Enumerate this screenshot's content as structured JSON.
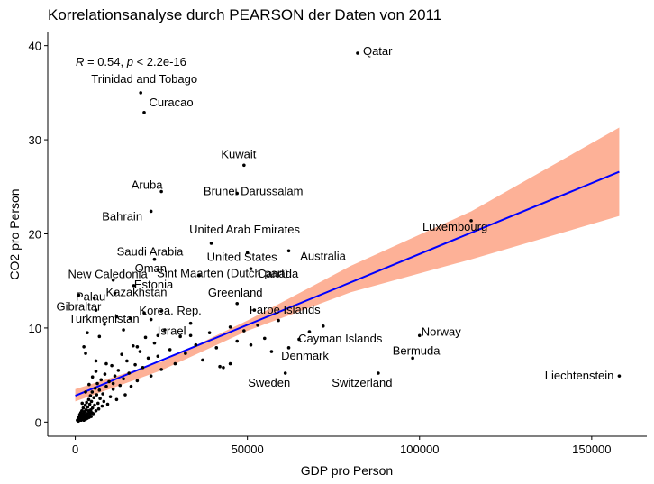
{
  "chart_data": {
    "type": "scatter",
    "title": "Korrelationsanalyse durch PEARSON der Daten von 2011",
    "xlabel": "GDP pro Person",
    "ylabel": "CO2 pro Person",
    "xlim": [
      -8000,
      166000
    ],
    "ylim": [
      -1.5,
      41.5
    ],
    "x_ticks": [
      0,
      50000,
      100000,
      150000
    ],
    "x_tick_labels": [
      "0",
      "50000",
      "100000",
      "150000"
    ],
    "y_ticks": [
      0,
      10,
      20,
      30,
      40
    ],
    "y_tick_labels": [
      "0",
      "10",
      "20",
      "30",
      "40"
    ],
    "grid": false,
    "annotation": {
      "r_label": "R",
      "r_text": " = 0.54, ",
      "p_label": "p",
      "p_text": " < 2.2e-16"
    },
    "regression": {
      "x_range": [
        0,
        158000
      ],
      "line": [
        [
          0,
          2.8
        ],
        [
          158000,
          26.6
        ]
      ],
      "ci_band": [
        [
          0,
          2.2,
          3.5
        ],
        [
          25000,
          5.5,
          6.4
        ],
        [
          50000,
          9.7,
          10.8
        ],
        [
          80000,
          13.8,
          16.6
        ],
        [
          115000,
          17.3,
          22.4
        ],
        [
          158000,
          21.9,
          31.3
        ]
      ],
      "line_color": "#0000ff",
      "band_color": "#fdb197"
    },
    "labeled_points": [
      {
        "name": "Qatar",
        "x": 82000,
        "y": 39.2
      },
      {
        "name": "Trinidad and Tobago",
        "x": 19000,
        "y": 35.0
      },
      {
        "name": "Curacao",
        "x": 20000,
        "y": 32.9
      },
      {
        "name": "Kuwait",
        "x": 49000,
        "y": 27.3
      },
      {
        "name": "Aruba",
        "x": 25000,
        "y": 24.5
      },
      {
        "name": "Brunei Darussalam",
        "x": 47000,
        "y": 24.3
      },
      {
        "name": "Luxembourg",
        "x": 115000,
        "y": 21.4
      },
      {
        "name": "Bahrain",
        "x": 22000,
        "y": 22.4
      },
      {
        "name": "United Arab Emirates",
        "x": 39500,
        "y": 19.0
      },
      {
        "name": "United States",
        "x": 50000,
        "y": 18.0
      },
      {
        "name": "Saudi Arabia",
        "x": 23000,
        "y": 17.3
      },
      {
        "name": "Australia",
        "x": 62000,
        "y": 18.2
      },
      {
        "name": "Oman",
        "x": 24000,
        "y": 16.2
      },
      {
        "name": "Sint Maarten (Dutch part)",
        "x": 36000,
        "y": 15.6
      },
      {
        "name": "Canada",
        "x": 51000,
        "y": 16.3
      },
      {
        "name": "New Caledonia",
        "x": 11000,
        "y": 15.1
      },
      {
        "name": "Estonia",
        "x": 17000,
        "y": 14.5
      },
      {
        "name": "Greenland",
        "x": 47000,
        "y": 12.6
      },
      {
        "name": "Kazakhstan",
        "x": 11500,
        "y": 13.7
      },
      {
        "name": "Palau",
        "x": 5500,
        "y": 13.2
      },
      {
        "name": "Faroe Islands",
        "x": 52000,
        "y": 11.9
      },
      {
        "name": "Korea. Rep.",
        "x": 25000,
        "y": 11.8
      },
      {
        "name": "Gibraltar",
        "x": 1000,
        "y": 13.5
      },
      {
        "name": "Turkmenistan",
        "x": 6000,
        "y": 11.9
      },
      {
        "name": "Israel",
        "x": 33500,
        "y": 9.2
      },
      {
        "name": "Norway",
        "x": 100000,
        "y": 9.2
      },
      {
        "name": "Cayman Islands",
        "x": 72000,
        "y": 10.2
      },
      {
        "name": "Bermuda",
        "x": 98000,
        "y": 6.8
      },
      {
        "name": "Denmark",
        "x": 62000,
        "y": 7.9
      },
      {
        "name": "Liechtenstein",
        "x": 158000,
        "y": 4.9
      },
      {
        "name": "Sweden",
        "x": 61000,
        "y": 5.2
      },
      {
        "name": "Switzerland",
        "x": 88000,
        "y": 5.2
      }
    ],
    "points": [
      [
        600,
        0.2
      ],
      [
        800,
        0.3
      ],
      [
        900,
        0.1
      ],
      [
        1000,
        0.5
      ],
      [
        1100,
        0.2
      ],
      [
        1200,
        0.4
      ],
      [
        1300,
        0.8
      ],
      [
        1400,
        0.3
      ],
      [
        1500,
        0.6
      ],
      [
        1600,
        1.0
      ],
      [
        1700,
        0.2
      ],
      [
        1800,
        0.7
      ],
      [
        1900,
        1.2
      ],
      [
        2000,
        0.4
      ],
      [
        2100,
        0.9
      ],
      [
        2200,
        0.3
      ],
      [
        2300,
        1.5
      ],
      [
        2400,
        0.6
      ],
      [
        2500,
        0.2
      ],
      [
        2600,
        1.1
      ],
      [
        2700,
        0.5
      ],
      [
        2800,
        0.8
      ],
      [
        2900,
        1.8
      ],
      [
        3000,
        0.3
      ],
      [
        3100,
        1.3
      ],
      [
        3200,
        0.6
      ],
      [
        3300,
        2.1
      ],
      [
        3400,
        0.9
      ],
      [
        3500,
        0.4
      ],
      [
        3600,
        1.6
      ],
      [
        3700,
        0.7
      ],
      [
        3800,
        1.2
      ],
      [
        3900,
        2.4
      ],
      [
        4000,
        0.5
      ],
      [
        4100,
        1.0
      ],
      [
        4200,
        1.9
      ],
      [
        4300,
        0.8
      ],
      [
        4400,
        2.8
      ],
      [
        4500,
        1.3
      ],
      [
        4600,
        0.6
      ],
      [
        4700,
        2.2
      ],
      [
        4800,
        1.0
      ],
      [
        4900,
        3.2
      ],
      [
        5000,
        1.5
      ],
      [
        5200,
        0.9
      ],
      [
        5400,
        2.6
      ],
      [
        5600,
        1.8
      ],
      [
        5800,
        3.6
      ],
      [
        6000,
        1.2
      ],
      [
        6200,
        2.9
      ],
      [
        6400,
        4.1
      ],
      [
        6600,
        2.0
      ],
      [
        6800,
        1.4
      ],
      [
        7000,
        3.4
      ],
      [
        7200,
        2.5
      ],
      [
        7500,
        4.5
      ],
      [
        7800,
        1.7
      ],
      [
        8000,
        3.0
      ],
      [
        8300,
        2.2
      ],
      [
        8600,
        5.1
      ],
      [
        9000,
        3.8
      ],
      [
        9400,
        1.9
      ],
      [
        9800,
        4.3
      ],
      [
        10200,
        2.7
      ],
      [
        10600,
        6.0
      ],
      [
        11000,
        3.5
      ],
      [
        11500,
        4.9
      ],
      [
        12000,
        2.4
      ],
      [
        12500,
        5.5
      ],
      [
        13000,
        3.9
      ],
      [
        13500,
        7.2
      ],
      [
        14000,
        4.6
      ],
      [
        14500,
        2.9
      ],
      [
        15000,
        6.5
      ],
      [
        15600,
        5.2
      ],
      [
        16200,
        3.8
      ],
      [
        16800,
        8.1
      ],
      [
        17400,
        6.1
      ],
      [
        18000,
        4.4
      ],
      [
        18800,
        7.5
      ],
      [
        19600,
        5.8
      ],
      [
        20400,
        9.0
      ],
      [
        21200,
        6.8
      ],
      [
        22000,
        4.9
      ],
      [
        23000,
        8.4
      ],
      [
        24000,
        7.0
      ],
      [
        25000,
        5.6
      ],
      [
        26000,
        9.8
      ],
      [
        27500,
        7.7
      ],
      [
        29000,
        6.2
      ],
      [
        30500,
        9.1
      ],
      [
        32000,
        7.3
      ],
      [
        33500,
        10.5
      ],
      [
        35000,
        8.2
      ],
      [
        37000,
        6.6
      ],
      [
        39000,
        9.5
      ],
      [
        41000,
        7.9
      ],
      [
        43000,
        5.8
      ],
      [
        45000,
        10.1
      ],
      [
        47000,
        8.6
      ],
      [
        49000,
        9.7
      ],
      [
        51000,
        8.2
      ],
      [
        53000,
        10.3
      ],
      [
        55000,
        8.9
      ],
      [
        57000,
        7.5
      ],
      [
        59000,
        10.8
      ],
      [
        65000,
        8.8
      ],
      [
        68000,
        9.6
      ],
      [
        45000,
        6.2
      ],
      [
        42000,
        5.9
      ],
      [
        3000,
        7.3
      ],
      [
        3500,
        9.5
      ],
      [
        2500,
        8.0
      ],
      [
        6000,
        6.5
      ],
      [
        7000,
        9.1
      ],
      [
        8500,
        10.4
      ],
      [
        12000,
        11.2
      ],
      [
        14000,
        9.8
      ],
      [
        16000,
        11.0
      ],
      [
        18000,
        8.0
      ],
      [
        20000,
        11.6
      ],
      [
        22000,
        10.9
      ],
      [
        24000,
        9.2
      ],
      [
        2000,
        2.0
      ],
      [
        3000,
        3.2
      ],
      [
        4000,
        4.0
      ],
      [
        5000,
        4.8
      ],
      [
        6000,
        5.4
      ],
      [
        9000,
        6.2
      ],
      [
        11000,
        4.1
      ]
    ]
  }
}
